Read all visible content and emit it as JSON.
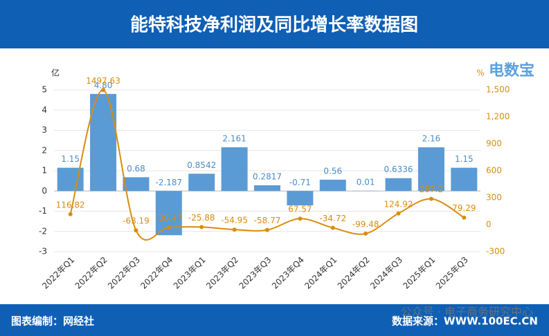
{
  "chart_data": {
    "type": "bar",
    "title": "能特科技净利润及同比增长率数据图",
    "categories": [
      "2022年Q1",
      "2022年Q2",
      "2022年Q3",
      "2022年Q4",
      "2023年Q1",
      "2023年Q2",
      "2023年Q3",
      "2023年Q4",
      "2024年Q1",
      "2024年Q2",
      "2024年Q3",
      "2025年Q1",
      "2025年Q3"
    ],
    "series": [
      {
        "type": "bar",
        "color": "#5b9bd5",
        "values": [
          1.15,
          4.8,
          0.68,
          -2.187,
          0.8542,
          2.161,
          0.2817,
          -0.71,
          0.56,
          0.01,
          0.6336,
          2.16,
          1.15
        ],
        "value_labels": [
          "1.15",
          "4.80",
          "0.68",
          "-2.187",
          "0.8542",
          "2.161",
          "0.2817",
          "-0.71",
          "0.56",
          "0.01",
          "0.6336",
          "2.16",
          "1.15"
        ]
      },
      {
        "type": "line",
        "axis": "y2",
        "color": "#d98c0b",
        "values": [
          116.82,
          1497.63,
          -63.19,
          -30.47,
          -25.88,
          -54.95,
          -58.77,
          67.57,
          -34.72,
          -99.48,
          124.92,
          287.2,
          79.29
        ]
      }
    ],
    "y_label": "亿",
    "y2_label": "%",
    "ylim": [
      -3,
      5
    ],
    "yticks": [
      -3,
      -2,
      -1,
      0,
      1,
      2,
      3,
      4,
      5
    ],
    "y2lim": [
      -300,
      1500
    ],
    "y2ticks": [
      -300,
      0,
      300,
      600,
      900,
      {
        "value": 1200,
        "label": "1,200"
      },
      {
        "value": 1500,
        "label": "1,500"
      }
    ],
    "grid": true
  },
  "logo": "电数宝",
  "watermark": "公众号 · 电子商务研究中心",
  "footer": {
    "left": "图表编制：网经社",
    "right": "数据来源：WWW.100EC.CN"
  }
}
